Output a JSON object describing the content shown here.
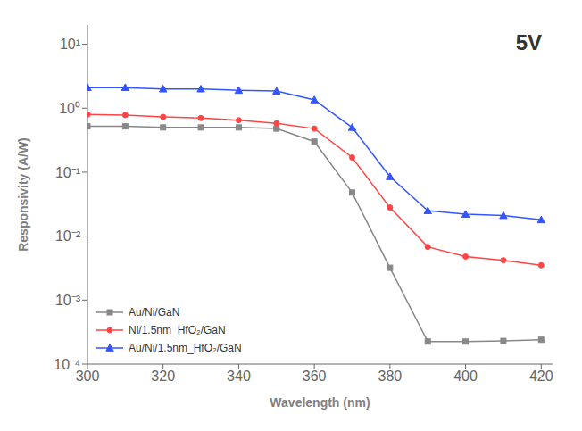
{
  "chart_data": {
    "type": "line",
    "annotation": "5V",
    "xlabel": "Wavelength (nm)",
    "ylabel": "Responsivity (A/W)",
    "log": "y",
    "x": [
      300,
      310,
      320,
      330,
      340,
      350,
      360,
      370,
      380,
      390,
      400,
      410,
      420
    ],
    "series": [
      {
        "name": "Au/Ni/GaN",
        "color": "#888888",
        "marker": "square",
        "values": [
          0.52,
          0.52,
          0.5,
          0.5,
          0.5,
          0.48,
          0.3,
          0.048,
          0.0032,
          0.000225,
          0.000225,
          0.00023,
          0.00024
        ]
      },
      {
        "name": "Ni/1.5nm_HfO₂/GaN",
        "color": "#ff4444",
        "marker": "circle",
        "values": [
          0.8,
          0.78,
          0.73,
          0.7,
          0.65,
          0.58,
          0.48,
          0.17,
          0.028,
          0.0068,
          0.0048,
          0.0042,
          0.0035
        ]
      },
      {
        "name": "Au/Ni/1.5nm_HfO₂/GaN",
        "color": "#3355ff",
        "marker": "triangle",
        "values": [
          2.1,
          2.1,
          2.0,
          2.0,
          1.9,
          1.85,
          1.35,
          0.5,
          0.085,
          0.025,
          0.022,
          0.021,
          0.018
        ]
      }
    ],
    "xlim": [
      300,
      423
    ],
    "ylim": [
      0.0001,
      20
    ],
    "xticks": [
      300,
      320,
      340,
      360,
      380,
      400,
      420
    ],
    "yticks": [
      {
        "value": 0.0001,
        "label": "10⁻⁴"
      },
      {
        "value": 0.001,
        "label": "10⁻³"
      },
      {
        "value": 0.01,
        "label": "10⁻²"
      },
      {
        "value": 0.1,
        "label": "10⁻¹"
      },
      {
        "value": 1,
        "label": "10⁰"
      },
      {
        "value": 10,
        "label": "10¹"
      }
    ],
    "grid": false,
    "legend": "lower left"
  }
}
